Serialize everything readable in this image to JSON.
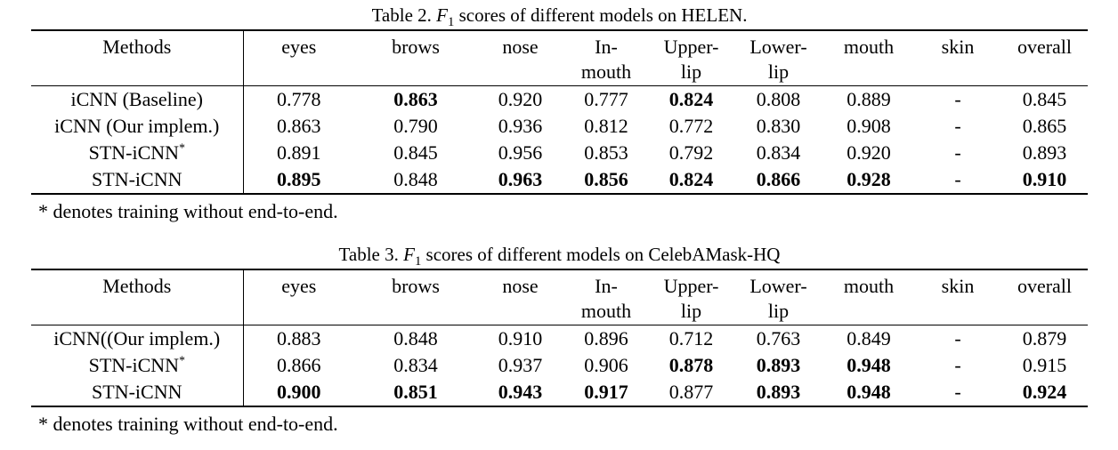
{
  "page": {
    "background_color": "#ffffff",
    "text_color": "#000000"
  },
  "tables": [
    {
      "id": "helen",
      "caption": {
        "prefix": "Table 2. ",
        "math_var": "F",
        "math_sub": "1",
        "suffix": " scores of different models on HELEN."
      },
      "columns": [
        {
          "id": "methods",
          "line1": "Methods",
          "line2": ""
        },
        {
          "id": "eyes",
          "line1": "eyes",
          "line2": ""
        },
        {
          "id": "brows",
          "line1": "brows",
          "line2": ""
        },
        {
          "id": "nose",
          "line1": "nose",
          "line2": ""
        },
        {
          "id": "in-mouth",
          "line1": "In-",
          "line2": "mouth"
        },
        {
          "id": "upper-lip",
          "line1": "Upper-",
          "line2": "lip"
        },
        {
          "id": "lower-lip",
          "line1": "Lower-",
          "line2": "lip"
        },
        {
          "id": "mouth",
          "line1": "mouth",
          "line2": ""
        },
        {
          "id": "skin",
          "line1": "skin",
          "line2": ""
        },
        {
          "id": "overall",
          "line1": "overall",
          "line2": ""
        }
      ],
      "rows": [
        {
          "method": "iCNN (Baseline)",
          "method_sup": "",
          "values": [
            "0.778",
            "0.863",
            "0.920",
            "0.777",
            "0.824",
            "0.808",
            "0.889",
            "-",
            "0.845"
          ],
          "bold": [
            false,
            true,
            false,
            false,
            true,
            false,
            false,
            false,
            false
          ]
        },
        {
          "method": "iCNN (Our implem.)",
          "method_sup": "",
          "values": [
            "0.863",
            "0.790",
            "0.936",
            "0.812",
            "0.772",
            "0.830",
            "0.908",
            "-",
            "0.865"
          ],
          "bold": [
            false,
            false,
            false,
            false,
            false,
            false,
            false,
            false,
            false
          ]
        },
        {
          "method": "STN-iCNN",
          "method_sup": "*",
          "values": [
            "0.891",
            "0.845",
            "0.956",
            "0.853",
            "0.792",
            "0.834",
            "0.920",
            "-",
            "0.893"
          ],
          "bold": [
            false,
            false,
            false,
            false,
            false,
            false,
            false,
            false,
            false
          ]
        },
        {
          "method": "STN-iCNN",
          "method_sup": "",
          "values": [
            "0.895",
            "0.848",
            "0.963",
            "0.856",
            "0.824",
            "0.866",
            "0.928",
            "-",
            "0.910"
          ],
          "bold": [
            true,
            false,
            true,
            true,
            true,
            true,
            true,
            false,
            true
          ]
        }
      ],
      "footnote": {
        "marker": "*",
        "text": " denotes training without end-to-end."
      }
    },
    {
      "id": "celebamask-hq",
      "caption": {
        "prefix": "Table 3. ",
        "math_var": "F",
        "math_sub": "1",
        "suffix": " scores of different models on CelebAMask-HQ"
      },
      "columns": [
        {
          "id": "methods",
          "line1": "Methods",
          "line2": ""
        },
        {
          "id": "eyes",
          "line1": "eyes",
          "line2": ""
        },
        {
          "id": "brows",
          "line1": "brows",
          "line2": ""
        },
        {
          "id": "nose",
          "line1": "nose",
          "line2": ""
        },
        {
          "id": "in-mouth",
          "line1": "In-",
          "line2": "mouth"
        },
        {
          "id": "upper-lip",
          "line1": "Upper-",
          "line2": "lip"
        },
        {
          "id": "lower-lip",
          "line1": "Lower-",
          "line2": "lip"
        },
        {
          "id": "mouth",
          "line1": "mouth",
          "line2": ""
        },
        {
          "id": "skin",
          "line1": "skin",
          "line2": ""
        },
        {
          "id": "overall",
          "line1": "overall",
          "line2": ""
        }
      ],
      "rows": [
        {
          "method": "iCNN((Our implem.)",
          "method_sup": "",
          "values": [
            "0.883",
            "0.848",
            "0.910",
            "0.896",
            "0.712",
            "0.763",
            "0.849",
            "-",
            "0.879"
          ],
          "bold": [
            false,
            false,
            false,
            false,
            false,
            false,
            false,
            false,
            false
          ]
        },
        {
          "method": "STN-iCNN",
          "method_sup": "*",
          "values": [
            "0.866",
            "0.834",
            "0.937",
            "0.906",
            "0.878",
            "0.893",
            "0.948",
            "-",
            "0.915"
          ],
          "bold": [
            false,
            false,
            false,
            false,
            true,
            true,
            true,
            false,
            false
          ]
        },
        {
          "method": "STN-iCNN",
          "method_sup": "",
          "values": [
            "0.900",
            "0.851",
            "0.943",
            "0.917",
            "0.877",
            "0.893",
            "0.948",
            "-",
            "0.924"
          ],
          "bold": [
            true,
            true,
            true,
            true,
            false,
            true,
            true,
            false,
            true
          ]
        }
      ],
      "footnote": {
        "marker": "*",
        "text": " denotes training without end-to-end."
      }
    }
  ]
}
